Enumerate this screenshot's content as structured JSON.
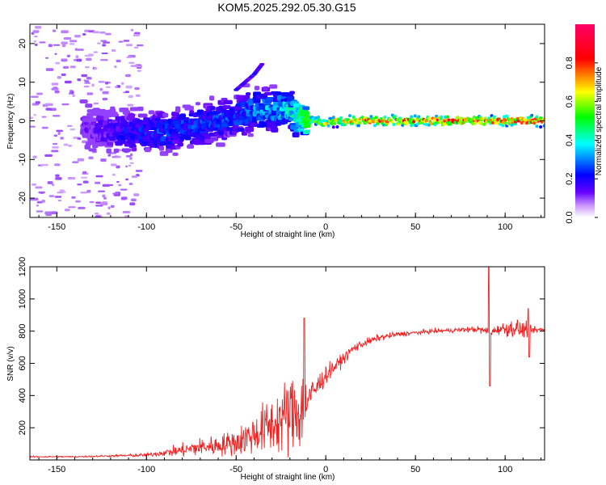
{
  "chart_data": [
    {
      "type": "heatmap",
      "title": "KOM5.2025.292.05.30.G15",
      "xlabel": "Height of straight line (km)",
      "ylabel": "Frequency (Hz)",
      "xlim": [
        -165,
        122
      ],
      "ylim": [
        -25,
        25
      ],
      "xticks": [
        -150,
        -100,
        -50,
        0,
        50,
        100
      ],
      "yticks": [
        -20,
        -10,
        0,
        10,
        20
      ],
      "colorbar": {
        "label": "Normalized spectral amplitude",
        "range": [
          0,
          1
        ],
        "ticks": [
          0.0,
          0.2,
          0.4,
          0.6,
          0.8
        ],
        "colors": [
          "#ffffff",
          "#cc99ff",
          "#6600ff",
          "#0000ff",
          "#00ffff",
          "#00ff00",
          "#ffff00",
          "#ff0000",
          "#ff0066"
        ]
      },
      "ridges": [
        {
          "name": "main trend",
          "x": [
            -130,
            -110,
            -90,
            -70,
            -50,
            -40,
            -30,
            -20,
            -15,
            -10,
            -5,
            0,
            5,
            10,
            20,
            40,
            60,
            80,
            90,
            100,
            110,
            120
          ],
          "y": [
            -2,
            -3,
            -3,
            -1,
            1,
            3,
            3,
            3,
            1,
            0,
            0,
            -1,
            0,
            0,
            0,
            0,
            0,
            0,
            0,
            0,
            0,
            0
          ],
          "amplitude": [
            0.15,
            0.25,
            0.3,
            0.3,
            0.3,
            0.35,
            0.4,
            0.45,
            0.5,
            0.6,
            0.65,
            0.7,
            0.75,
            0.8,
            0.85,
            0.9,
            0.95,
            0.95,
            0.9,
            0.95,
            0.95,
            0.95
          ]
        },
        {
          "name": "rising streak",
          "x": [
            -50,
            -45,
            -40,
            -35
          ],
          "y": [
            8,
            10,
            12,
            15
          ],
          "amplitude": [
            0.15,
            0.2,
            0.2,
            0.25
          ]
        }
      ]
    },
    {
      "type": "line",
      "xlabel": "Height of straight line (km)",
      "ylabel": "SNR (v/v)",
      "xlim": [
        -165,
        122
      ],
      "ylim": [
        0,
        1200
      ],
      "xticks": [
        -150,
        -100,
        -50,
        0,
        50,
        100
      ],
      "yticks": [
        200,
        400,
        600,
        800,
        1000,
        1200
      ],
      "series": [
        {
          "name": "SNR",
          "color": "#ee2222",
          "x": [
            -165,
            -140,
            -120,
            -100,
            -90,
            -80,
            -70,
            -60,
            -50,
            -40,
            -30,
            -25,
            -20,
            -15,
            -12,
            -10,
            -5,
            0,
            5,
            10,
            15,
            20,
            30,
            40,
            50,
            60,
            70,
            80,
            85,
            90,
            92,
            95,
            100,
            105,
            110,
            115,
            122
          ],
          "y": [
            20,
            20,
            25,
            30,
            45,
            60,
            80,
            90,
            110,
            160,
            220,
            250,
            280,
            300,
            350,
            380,
            450,
            530,
            580,
            630,
            690,
            720,
            760,
            780,
            790,
            800,
            805,
            810,
            810,
            800,
            790,
            810,
            815,
            820,
            810,
            805,
            810
          ],
          "noise": [
            3,
            3,
            4,
            8,
            15,
            30,
            40,
            45,
            60,
            90,
            130,
            150,
            180,
            200,
            150,
            80,
            60,
            40,
            30,
            25,
            20,
            18,
            15,
            12,
            10,
            10,
            10,
            12,
            15,
            20,
            10,
            20,
            30,
            40,
            40,
            15,
            10
          ],
          "spikes": [
            {
              "x": -12,
              "y": 880
            },
            {
              "x": 91,
              "y": 1200
            },
            {
              "x": 91.5,
              "y": 460
            },
            {
              "x": 113,
              "y": 940
            },
            {
              "x": 113.5,
              "y": 640
            }
          ]
        }
      ]
    }
  ]
}
